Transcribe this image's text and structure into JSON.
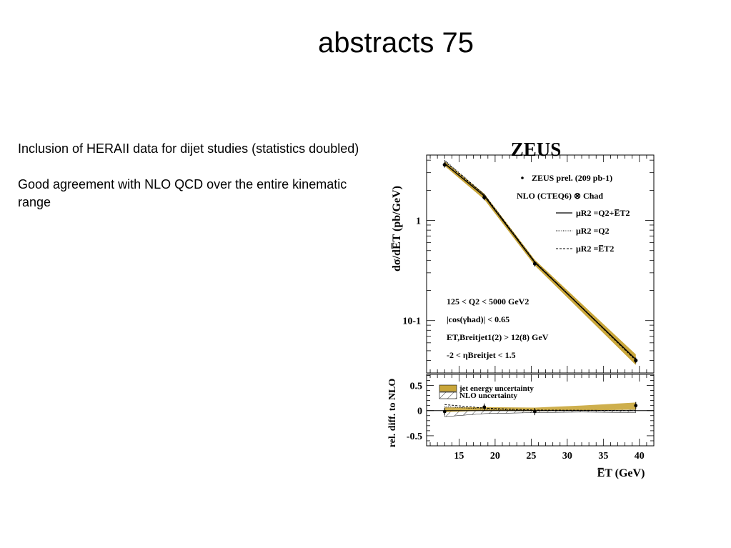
{
  "slide": {
    "title": "abstracts 75",
    "paragraphs": [
      "Inclusion of HERAII data for dijet studies (statistics doubled)",
      "Good agreement with NLO QCD over the entire kinematic range"
    ]
  },
  "chart_data": [
    {
      "type": "line",
      "title": "ZEUS",
      "ylabel": "dσ/dE̅T (pb/GeV)",
      "yscale": "log",
      "xlim": [
        10.5,
        42
      ],
      "ylim": [
        0.03,
        4.5
      ],
      "yticks": [
        {
          "value": 1,
          "label": "1"
        },
        {
          "value": 0.1,
          "label": "10-1"
        }
      ],
      "legend": {
        "data": "ZEUS prel. (209 pb-1)",
        "nlo": "NLO (CTEQ6) ⊗ Chad",
        "scales": [
          "μR2 =Q2+E̅T2",
          "μR2 =Q2",
          "μR2 =E̅T2"
        ]
      },
      "cuts": [
        "125 < Q2 < 5000 GeV2",
        "|cos(γhad)| < 0.65",
        "ET,Breitjet1(2) > 12(8) GeV",
        "-2 < ηBreitjet < 1.5"
      ],
      "x": [
        13,
        18.5,
        25.5,
        39.5
      ],
      "series": [
        {
          "name": "ZEUS prel. (209 pb-1)",
          "style": "points",
          "values": [
            3.6,
            1.7,
            0.37,
            0.04
          ]
        },
        {
          "name": "μR2 =Q2+E̅T2",
          "style": "solid",
          "values": [
            3.7,
            1.75,
            0.38,
            0.041
          ]
        },
        {
          "name": "μR2 =Q2",
          "style": "dotted",
          "values": [
            4.0,
            1.82,
            0.39,
            0.041
          ]
        },
        {
          "name": "μR2 =E̅T2",
          "style": "dashed",
          "values": [
            3.9,
            1.8,
            0.385,
            0.04
          ]
        }
      ],
      "band": {
        "name": "jet energy uncertainty",
        "lower": [
          3.5,
          1.62,
          0.355,
          0.036
        ],
        "upper": [
          3.9,
          1.85,
          0.405,
          0.046
        ]
      },
      "colors": {
        "band": "#c9a63a",
        "line": "#000000"
      }
    },
    {
      "type": "line",
      "ylabel": "rel. diff. to NLO",
      "xlabel": "E̅T (GeV)",
      "xlim": [
        10.5,
        42
      ],
      "ylim": [
        -0.7,
        0.72
      ],
      "xticks": [
        15,
        20,
        25,
        30,
        35,
        40
      ],
      "yticks": [
        0.5,
        0,
        -0.5
      ],
      "ytick_labels": [
        "0.5",
        "0",
        "-0.5"
      ],
      "legend": [
        "jet energy uncertainty",
        "NLO uncertainty"
      ],
      "x": [
        13,
        18.5,
        25.5,
        39.5
      ],
      "series": [
        {
          "name": "data",
          "style": "points",
          "values": [
            -0.02,
            0.07,
            -0.02,
            0.1
          ]
        },
        {
          "name": "μR2 =Q2",
          "style": "dotted",
          "values": [
            0.08,
            0.03,
            0.0,
            0.0
          ]
        },
        {
          "name": "μR2 =E̅T2",
          "style": "dashed",
          "values": [
            0.12,
            0.05,
            0.01,
            0.0
          ]
        }
      ],
      "jet_band": {
        "x": [
          13,
          18.5,
          25.5,
          32,
          39.5
        ],
        "lower": [
          -0.03,
          0.0,
          -0.01,
          0.0,
          0.02
        ],
        "upper": [
          0.06,
          0.07,
          0.06,
          0.1,
          0.16
        ]
      },
      "nlo_band": {
        "x": [
          13,
          18.5,
          25.5,
          32,
          39.5
        ],
        "lower": [
          -0.12,
          -0.06,
          -0.04,
          -0.03,
          -0.04
        ],
        "upper": [
          0.06,
          0.04,
          0.02,
          0.02,
          0.02
        ]
      },
      "colors": {
        "band": "#c9a63a"
      }
    }
  ]
}
